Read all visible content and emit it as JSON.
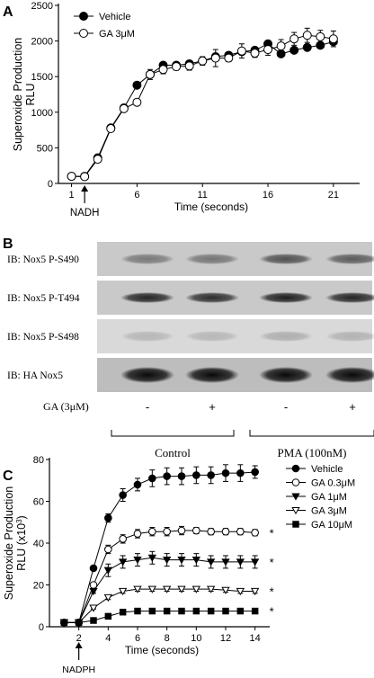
{
  "panel_a": {
    "label": "A",
    "annotation": {
      "text": "NADH",
      "x": 2
    }
  },
  "panel_b": {
    "label": "B",
    "rows": [
      {
        "label": "IB:  Nox5 P-S490",
        "intensities": [
          0.4,
          0.42,
          0.6,
          0.55
        ]
      },
      {
        "label": "IB:  Nox5 P-T494",
        "intensities": [
          0.82,
          0.78,
          0.85,
          0.82
        ]
      },
      {
        "label": "IB:  Nox5 P-S498",
        "intensities": [
          0.16,
          0.16,
          0.2,
          0.18
        ]
      },
      {
        "label": "IB:  HA Nox5",
        "intensities": [
          0.95,
          0.95,
          0.95,
          0.95
        ]
      }
    ],
    "treatment_label": "GA (3μM)",
    "lane_signs": [
      "-",
      "+",
      "-",
      "+"
    ],
    "groups": [
      {
        "label": "Control",
        "lanes": [
          0,
          1
        ]
      },
      {
        "label": "PMA (100nM)",
        "lanes": [
          2,
          3
        ]
      }
    ]
  },
  "panel_c": {
    "label": "C",
    "annotation": {
      "text": "NADPH",
      "x": 2
    }
  },
  "chart_data": [
    {
      "type": "line",
      "panel": "A",
      "xlabel": "Time (seconds)",
      "ylabel": "Superoxide Production\nRLU",
      "xlim": [
        0,
        23
      ],
      "ylim": [
        0,
        2500
      ],
      "xticks": [
        1,
        6,
        11,
        16,
        21
      ],
      "yticks": [
        0,
        500,
        1000,
        1500,
        2000,
        2500
      ],
      "legend_position": "top-left",
      "series": [
        {
          "name": "Vehicle",
          "marker": "filled-circle",
          "x": [
            1,
            2,
            3,
            4,
            5,
            6,
            7,
            8,
            9,
            10,
            11,
            12,
            13,
            14,
            15,
            16,
            17,
            18,
            19,
            20,
            21
          ],
          "values": [
            100,
            100,
            360,
            780,
            1060,
            1380,
            1530,
            1660,
            1660,
            1680,
            1720,
            1780,
            1800,
            1850,
            1870,
            1960,
            1820,
            1870,
            1910,
            1940,
            1990
          ],
          "errors": [
            0,
            0,
            0,
            0,
            0,
            0,
            0,
            0,
            0,
            0,
            0,
            0,
            0,
            0,
            0,
            0,
            0,
            0,
            0,
            0,
            0
          ]
        },
        {
          "name": "GA 3μM",
          "marker": "open-circle",
          "x": [
            1,
            2,
            3,
            4,
            5,
            6,
            7,
            8,
            9,
            10,
            11,
            12,
            13,
            14,
            15,
            16,
            17,
            18,
            19,
            20,
            21
          ],
          "values": [
            100,
            95,
            340,
            770,
            1050,
            1140,
            1530,
            1600,
            1640,
            1650,
            1720,
            1760,
            1760,
            1860,
            1830,
            1880,
            1930,
            2030,
            2080,
            2060,
            2030
          ],
          "errors": [
            0,
            0,
            0,
            0,
            0,
            0,
            70,
            60,
            50,
            60,
            60,
            120,
            50,
            100,
            60,
            80,
            90,
            90,
            100,
            90,
            110
          ]
        }
      ]
    },
    {
      "type": "line",
      "panel": "C",
      "xlabel": "Time (seconds)",
      "ylabel": "Superoxide Production\nRLU (x10³)",
      "xlim": [
        0,
        15
      ],
      "ylim": [
        0,
        80
      ],
      "xticks": [
        2,
        4,
        6,
        8,
        10,
        12,
        14
      ],
      "yticks": [
        0,
        20,
        40,
        60,
        80
      ],
      "legend_position": "right",
      "series": [
        {
          "name": "Vehicle",
          "marker": "filled-circle",
          "x": [
            1,
            2,
            3,
            4,
            5,
            6,
            7,
            8,
            9,
            10,
            11,
            12,
            13,
            14
          ],
          "values": [
            2,
            2,
            28,
            52,
            63,
            68,
            71,
            72,
            72,
            72.5,
            72.5,
            73.5,
            73.5,
            74
          ],
          "errors": [
            0,
            0,
            1,
            2,
            3,
            3,
            4,
            4,
            4,
            4,
            4,
            4,
            4,
            3
          ],
          "significance": ""
        },
        {
          "name": "GA 0.3μM",
          "marker": "open-circle",
          "x": [
            1,
            2,
            3,
            4,
            5,
            6,
            7,
            8,
            9,
            10,
            11,
            12,
            13,
            14
          ],
          "values": [
            2,
            2,
            20,
            37,
            42,
            44.5,
            45.5,
            45.5,
            46,
            46,
            45.5,
            45.5,
            45.5,
            45
          ],
          "errors": [
            0,
            0,
            1,
            2,
            2,
            2,
            2,
            2,
            2,
            1.5,
            1.5,
            1.5,
            1.5,
            1.5
          ],
          "significance": "*"
        },
        {
          "name": "GA 1μM",
          "marker": "filled-triangle-down",
          "x": [
            1,
            2,
            3,
            4,
            5,
            6,
            7,
            8,
            9,
            10,
            11,
            12,
            13,
            14
          ],
          "values": [
            2,
            2,
            17,
            27,
            31,
            32,
            33,
            32,
            32,
            32,
            31,
            31,
            31,
            31
          ],
          "errors": [
            0,
            0,
            1,
            3,
            3,
            3,
            3,
            3,
            3,
            3,
            3,
            3,
            3,
            3
          ],
          "significance": "*"
        },
        {
          "name": "GA 3μM",
          "marker": "open-triangle-down",
          "x": [
            1,
            2,
            3,
            4,
            5,
            6,
            7,
            8,
            9,
            10,
            11,
            12,
            13,
            14
          ],
          "values": [
            2,
            2,
            9,
            14,
            17,
            18,
            18,
            18,
            18,
            18,
            18,
            17.5,
            17,
            17
          ],
          "errors": [
            0,
            0,
            0.5,
            1,
            1,
            1,
            1,
            1,
            1,
            1,
            1,
            1,
            1,
            1
          ],
          "significance": "*"
        },
        {
          "name": "GA 10μM",
          "marker": "filled-square",
          "x": [
            1,
            2,
            3,
            4,
            5,
            6,
            7,
            8,
            9,
            10,
            11,
            12,
            13,
            14
          ],
          "values": [
            2,
            2,
            3,
            5,
            7,
            7.5,
            7.5,
            7.5,
            7.5,
            7.5,
            7.5,
            7.5,
            7.5,
            7.5
          ],
          "errors": [
            0,
            0,
            0,
            0,
            0,
            0,
            0,
            0,
            0,
            0,
            0,
            0,
            0,
            0
          ],
          "significance": "*"
        }
      ]
    }
  ]
}
